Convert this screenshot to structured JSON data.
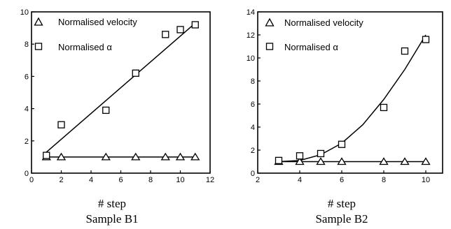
{
  "chart_data": [
    {
      "type": "scatter",
      "panel": "Sample B1",
      "xlabel": "# step",
      "caption": "Sample B1",
      "xlim": [
        0,
        12
      ],
      "ylim": [
        0,
        10
      ],
      "xticks": [
        "0",
        "2",
        "4",
        "6",
        "8",
        "10",
        "12"
      ],
      "yticks": [
        "0",
        "2",
        "4",
        "6",
        "8",
        "10"
      ],
      "series": [
        {
          "name": "Normalised velocity",
          "marker": "triangle",
          "x": [
            1,
            2,
            5,
            7,
            9,
            10,
            11
          ],
          "y": [
            1,
            1,
            1,
            1,
            1,
            1,
            1
          ]
        },
        {
          "name": "Normalised α",
          "marker": "square",
          "x": [
            1,
            2,
            5,
            7,
            9,
            10,
            11
          ],
          "y": [
            1.1,
            3.0,
            3.9,
            6.2,
            8.6,
            8.9,
            9.2
          ]
        }
      ],
      "fits": [
        {
          "type": "linear",
          "x": [
            1,
            11
          ],
          "y": [
            1.3,
            9.3
          ]
        },
        {
          "type": "linear",
          "x": [
            1,
            11
          ],
          "y": [
            1,
            1
          ]
        }
      ]
    },
    {
      "type": "scatter",
      "panel": "Sample B2",
      "xlabel": "# step",
      "caption": "Sample B2",
      "xlim": [
        2,
        10.8
      ],
      "ylim": [
        0,
        14
      ],
      "xticks": [
        "2",
        "4",
        "6",
        "8",
        "10"
      ],
      "yticks": [
        "0",
        "2",
        "4",
        "6",
        "8",
        "10",
        "12",
        "14"
      ],
      "series": [
        {
          "name": "Normalised velocity",
          "marker": "triangle",
          "x": [
            3,
            4,
            5,
            6,
            8,
            9,
            10
          ],
          "y": [
            1,
            1,
            1,
            1,
            1,
            1,
            1
          ]
        },
        {
          "name": "Normalised α",
          "marker": "square",
          "x": [
            3,
            4,
            5,
            6,
            8,
            9,
            10
          ],
          "y": [
            1.1,
            1.5,
            1.7,
            2.5,
            5.7,
            10.6,
            11.6
          ]
        }
      ],
      "fits": [
        {
          "type": "curve",
          "x": [
            3,
            4,
            5,
            6,
            7,
            8,
            9,
            10
          ],
          "y": [
            1.0,
            1.1,
            1.6,
            2.6,
            4.2,
            6.4,
            9.0,
            12.0
          ]
        },
        {
          "type": "linear",
          "x": [
            3,
            10
          ],
          "y": [
            1,
            1
          ]
        }
      ]
    }
  ]
}
